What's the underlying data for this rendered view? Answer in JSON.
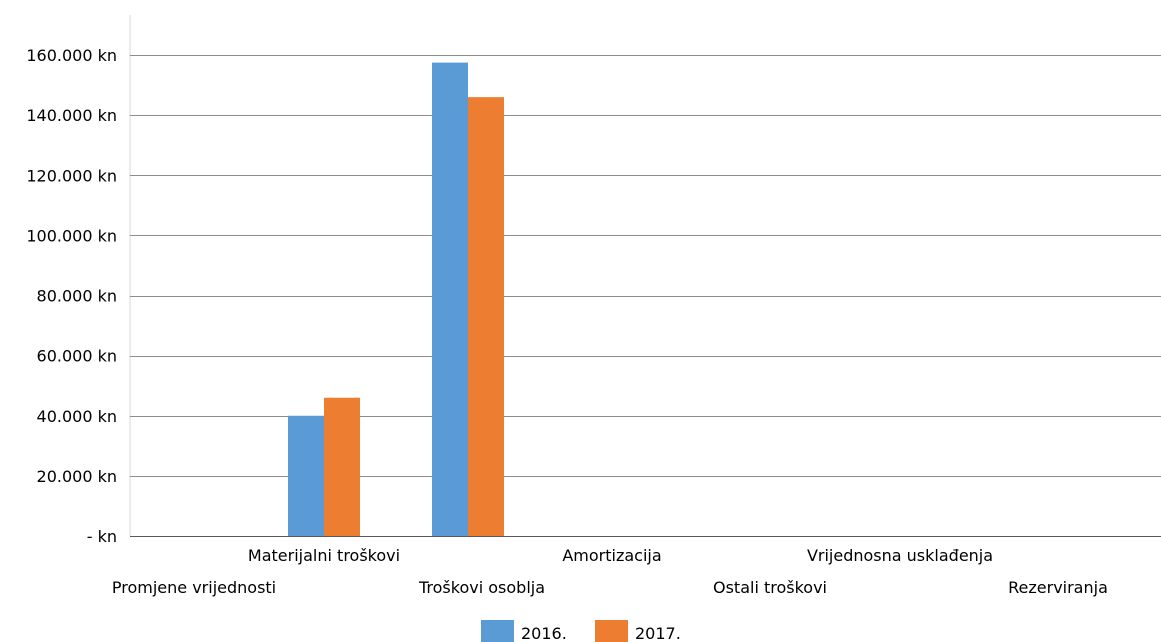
{
  "chart_data": {
    "type": "bar",
    "categories": [
      "Promjene vrijednosti",
      "Materijalni troškovi",
      "Troškovi osoblja",
      "Amortizacija",
      "Ostali troškovi",
      "Vrijednosna usklađenja",
      "Rezerviranja"
    ],
    "series": [
      {
        "name": "2016.",
        "color": "#5b9bd5",
        "values": [
          0,
          40000,
          157500,
          0,
          0,
          0,
          0
        ]
      },
      {
        "name": "2017.",
        "color": "#ed7d31",
        "values": [
          0,
          46000,
          146000,
          0,
          0,
          0,
          0
        ]
      }
    ],
    "y_ticks": [
      "- kn",
      "20.000 kn",
      "40.000 kn",
      "60.000 kn",
      "80.000 kn",
      "100.000 kn",
      "120.000 kn",
      "140.000 kn",
      "160.000 kn"
    ],
    "ylim": [
      0,
      173333
    ],
    "grid": true,
    "legend_position": "bottom",
    "title": "",
    "xlabel": "",
    "ylabel": ""
  }
}
